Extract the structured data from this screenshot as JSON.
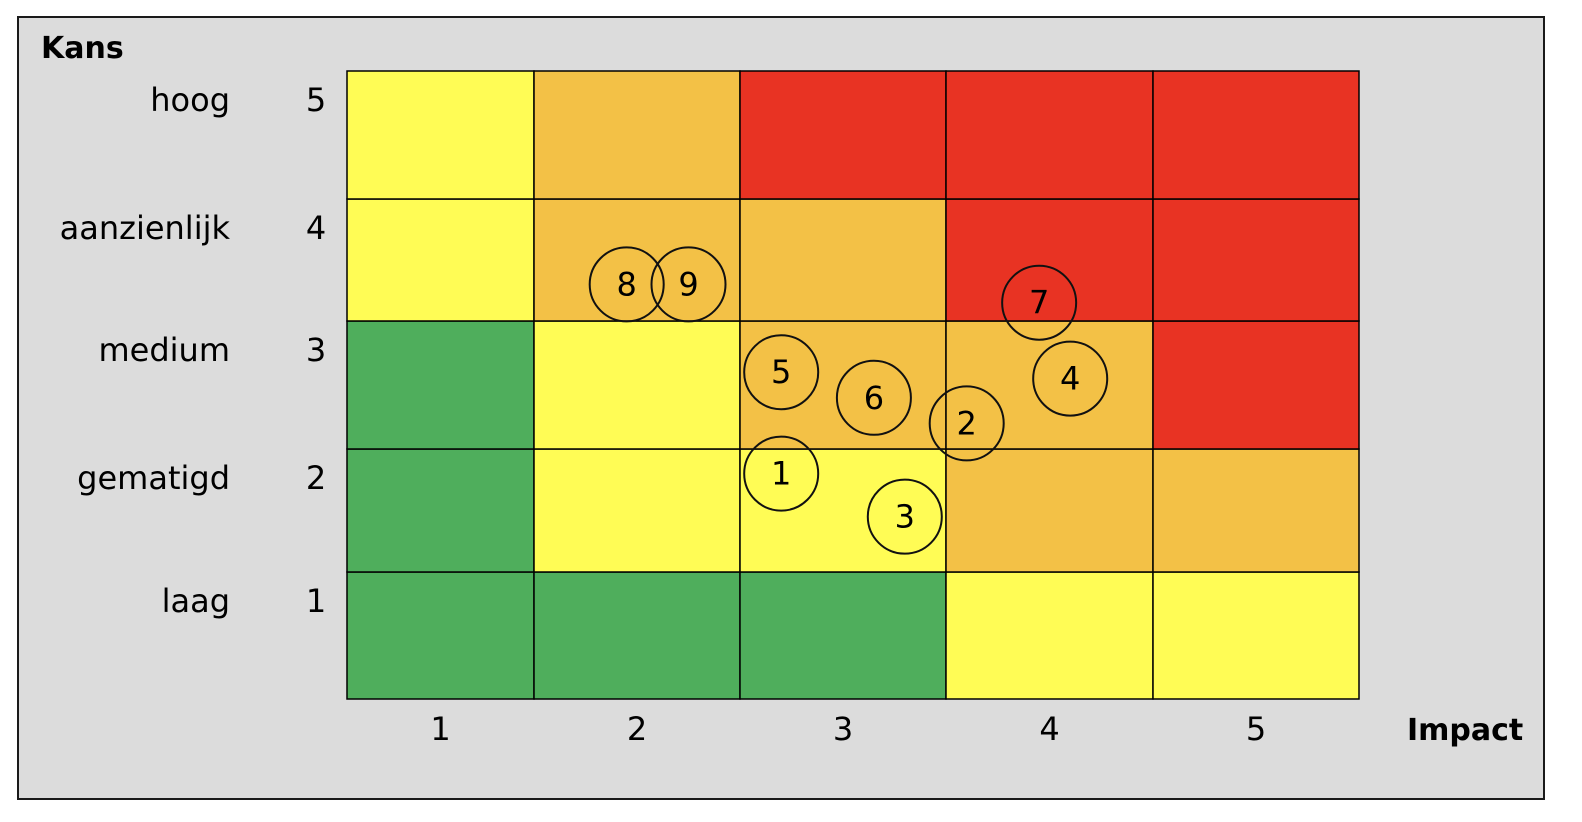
{
  "chart_data": {
    "type": "heatmap",
    "title": "",
    "ylabel": "Kans",
    "xlabel": "Impact",
    "x_ticks": [
      "1",
      "2",
      "3",
      "4",
      "5"
    ],
    "y_ticks": [
      "1",
      "2",
      "3",
      "4",
      "5"
    ],
    "y_level_names": [
      "laag",
      "gematigd",
      "medium",
      "aanzienlijk",
      "hoog"
    ],
    "colors": {
      "green": "#4fae5c",
      "yellow": "#fffc55",
      "orange": "#f3c146",
      "red": "#e83323"
    },
    "matrix_rows_from_bottom": [
      [
        "green",
        "green",
        "green",
        "yellow",
        "yellow"
      ],
      [
        "green",
        "yellow",
        "yellow",
        "orange",
        "orange"
      ],
      [
        "green",
        "yellow",
        "orange",
        "orange",
        "red"
      ],
      [
        "yellow",
        "orange",
        "orange",
        "red",
        "red"
      ],
      [
        "yellow",
        "orange",
        "red",
        "red",
        "red"
      ]
    ],
    "risks": [
      {
        "label": "1",
        "impact": 2.7,
        "kans": 2.3
      },
      {
        "label": "2",
        "impact": 3.6,
        "kans": 2.7
      },
      {
        "label": "3",
        "impact": 3.3,
        "kans": 1.95
      },
      {
        "label": "4",
        "impact": 4.1,
        "kans": 3.05
      },
      {
        "label": "5",
        "impact": 2.7,
        "kans": 3.1
      },
      {
        "label": "6",
        "impact": 3.15,
        "kans": 2.9
      },
      {
        "label": "7",
        "impact": 3.95,
        "kans": 3.65
      },
      {
        "label": "8",
        "impact": 1.95,
        "kans": 3.8
      },
      {
        "label": "9",
        "impact": 2.25,
        "kans": 3.8
      }
    ]
  }
}
